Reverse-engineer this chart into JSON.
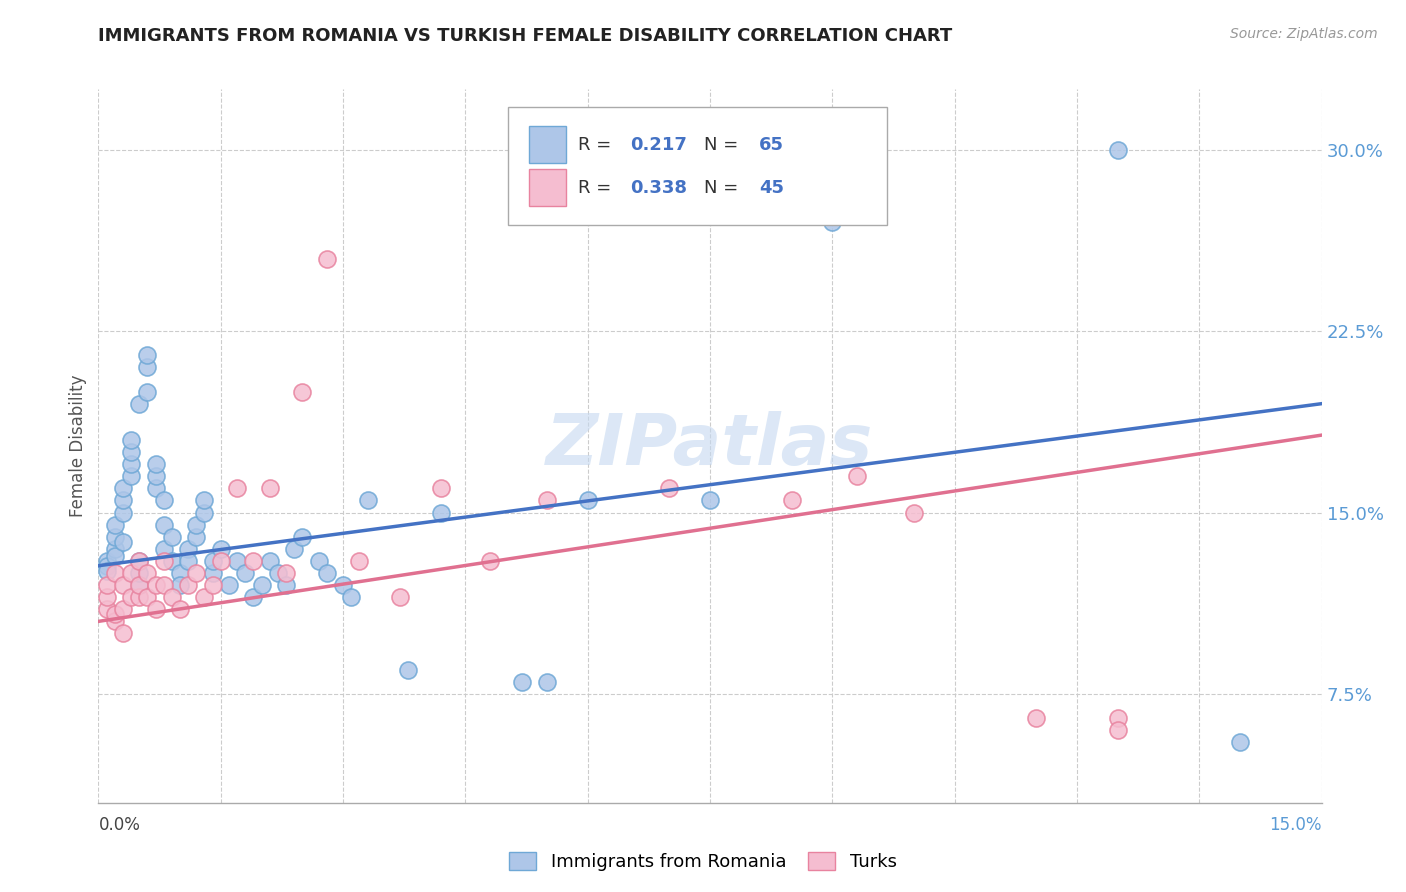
{
  "title": "IMMIGRANTS FROM ROMANIA VS TURKISH FEMALE DISABILITY CORRELATION CHART",
  "source": "Source: ZipAtlas.com",
  "ylabel": "Female Disability",
  "ytick_labels": [
    "7.5%",
    "15.0%",
    "22.5%",
    "30.0%"
  ],
  "ytick_values": [
    0.075,
    0.15,
    0.225,
    0.3
  ],
  "watermark": "ZIPatlas",
  "legend_series1": "Immigrants from Romania",
  "legend_series2": "Turks",
  "scatter1_color": "#aec6e8",
  "scatter1_edge": "#6fa8d6",
  "scatter2_color": "#f5bdd0",
  "scatter2_edge": "#e8839f",
  "line1_color": "#4472c4",
  "line2_color": "#e07090",
  "Romania_x": [
    0.001,
    0.001,
    0.001,
    0.002,
    0.002,
    0.002,
    0.002,
    0.003,
    0.003,
    0.003,
    0.003,
    0.004,
    0.004,
    0.004,
    0.004,
    0.005,
    0.005,
    0.005,
    0.005,
    0.006,
    0.006,
    0.006,
    0.007,
    0.007,
    0.007,
    0.008,
    0.008,
    0.008,
    0.009,
    0.009,
    0.01,
    0.01,
    0.011,
    0.011,
    0.012,
    0.012,
    0.013,
    0.013,
    0.014,
    0.014,
    0.015,
    0.016,
    0.017,
    0.018,
    0.019,
    0.02,
    0.021,
    0.022,
    0.023,
    0.024,
    0.025,
    0.027,
    0.028,
    0.03,
    0.031,
    0.033,
    0.038,
    0.042,
    0.052,
    0.055,
    0.06,
    0.075,
    0.09,
    0.125,
    0.14
  ],
  "Romania_y": [
    0.13,
    0.128,
    0.126,
    0.135,
    0.132,
    0.14,
    0.145,
    0.138,
    0.15,
    0.155,
    0.16,
    0.165,
    0.17,
    0.175,
    0.18,
    0.12,
    0.125,
    0.13,
    0.195,
    0.2,
    0.21,
    0.215,
    0.16,
    0.165,
    0.17,
    0.155,
    0.145,
    0.135,
    0.14,
    0.13,
    0.125,
    0.12,
    0.135,
    0.13,
    0.14,
    0.145,
    0.15,
    0.155,
    0.125,
    0.13,
    0.135,
    0.12,
    0.13,
    0.125,
    0.115,
    0.12,
    0.13,
    0.125,
    0.12,
    0.135,
    0.14,
    0.13,
    0.125,
    0.12,
    0.115,
    0.155,
    0.085,
    0.15,
    0.08,
    0.08,
    0.155,
    0.155,
    0.27,
    0.3,
    0.055
  ],
  "Turks_x": [
    0.001,
    0.001,
    0.001,
    0.002,
    0.002,
    0.002,
    0.003,
    0.003,
    0.003,
    0.004,
    0.004,
    0.005,
    0.005,
    0.005,
    0.006,
    0.006,
    0.007,
    0.007,
    0.008,
    0.008,
    0.009,
    0.01,
    0.011,
    0.012,
    0.013,
    0.014,
    0.015,
    0.017,
    0.019,
    0.021,
    0.023,
    0.025,
    0.028,
    0.032,
    0.037,
    0.042,
    0.048,
    0.055,
    0.07,
    0.085,
    0.093,
    0.1,
    0.115,
    0.125,
    0.125
  ],
  "Turks_y": [
    0.11,
    0.115,
    0.12,
    0.105,
    0.108,
    0.125,
    0.1,
    0.11,
    0.12,
    0.115,
    0.125,
    0.115,
    0.12,
    0.13,
    0.115,
    0.125,
    0.12,
    0.11,
    0.12,
    0.13,
    0.115,
    0.11,
    0.12,
    0.125,
    0.115,
    0.12,
    0.13,
    0.16,
    0.13,
    0.16,
    0.125,
    0.2,
    0.255,
    0.13,
    0.115,
    0.16,
    0.13,
    0.155,
    0.16,
    0.155,
    0.165,
    0.15,
    0.065,
    0.065,
    0.06
  ],
  "xlim": [
    0.0,
    0.15
  ],
  "ylim": [
    0.03,
    0.325
  ],
  "line1_x0": 0.0,
  "line1_y0": 0.128,
  "line1_x1": 0.15,
  "line1_y1": 0.195,
  "line2_x0": 0.0,
  "line2_y0": 0.105,
  "line2_x1": 0.15,
  "line2_y1": 0.182
}
